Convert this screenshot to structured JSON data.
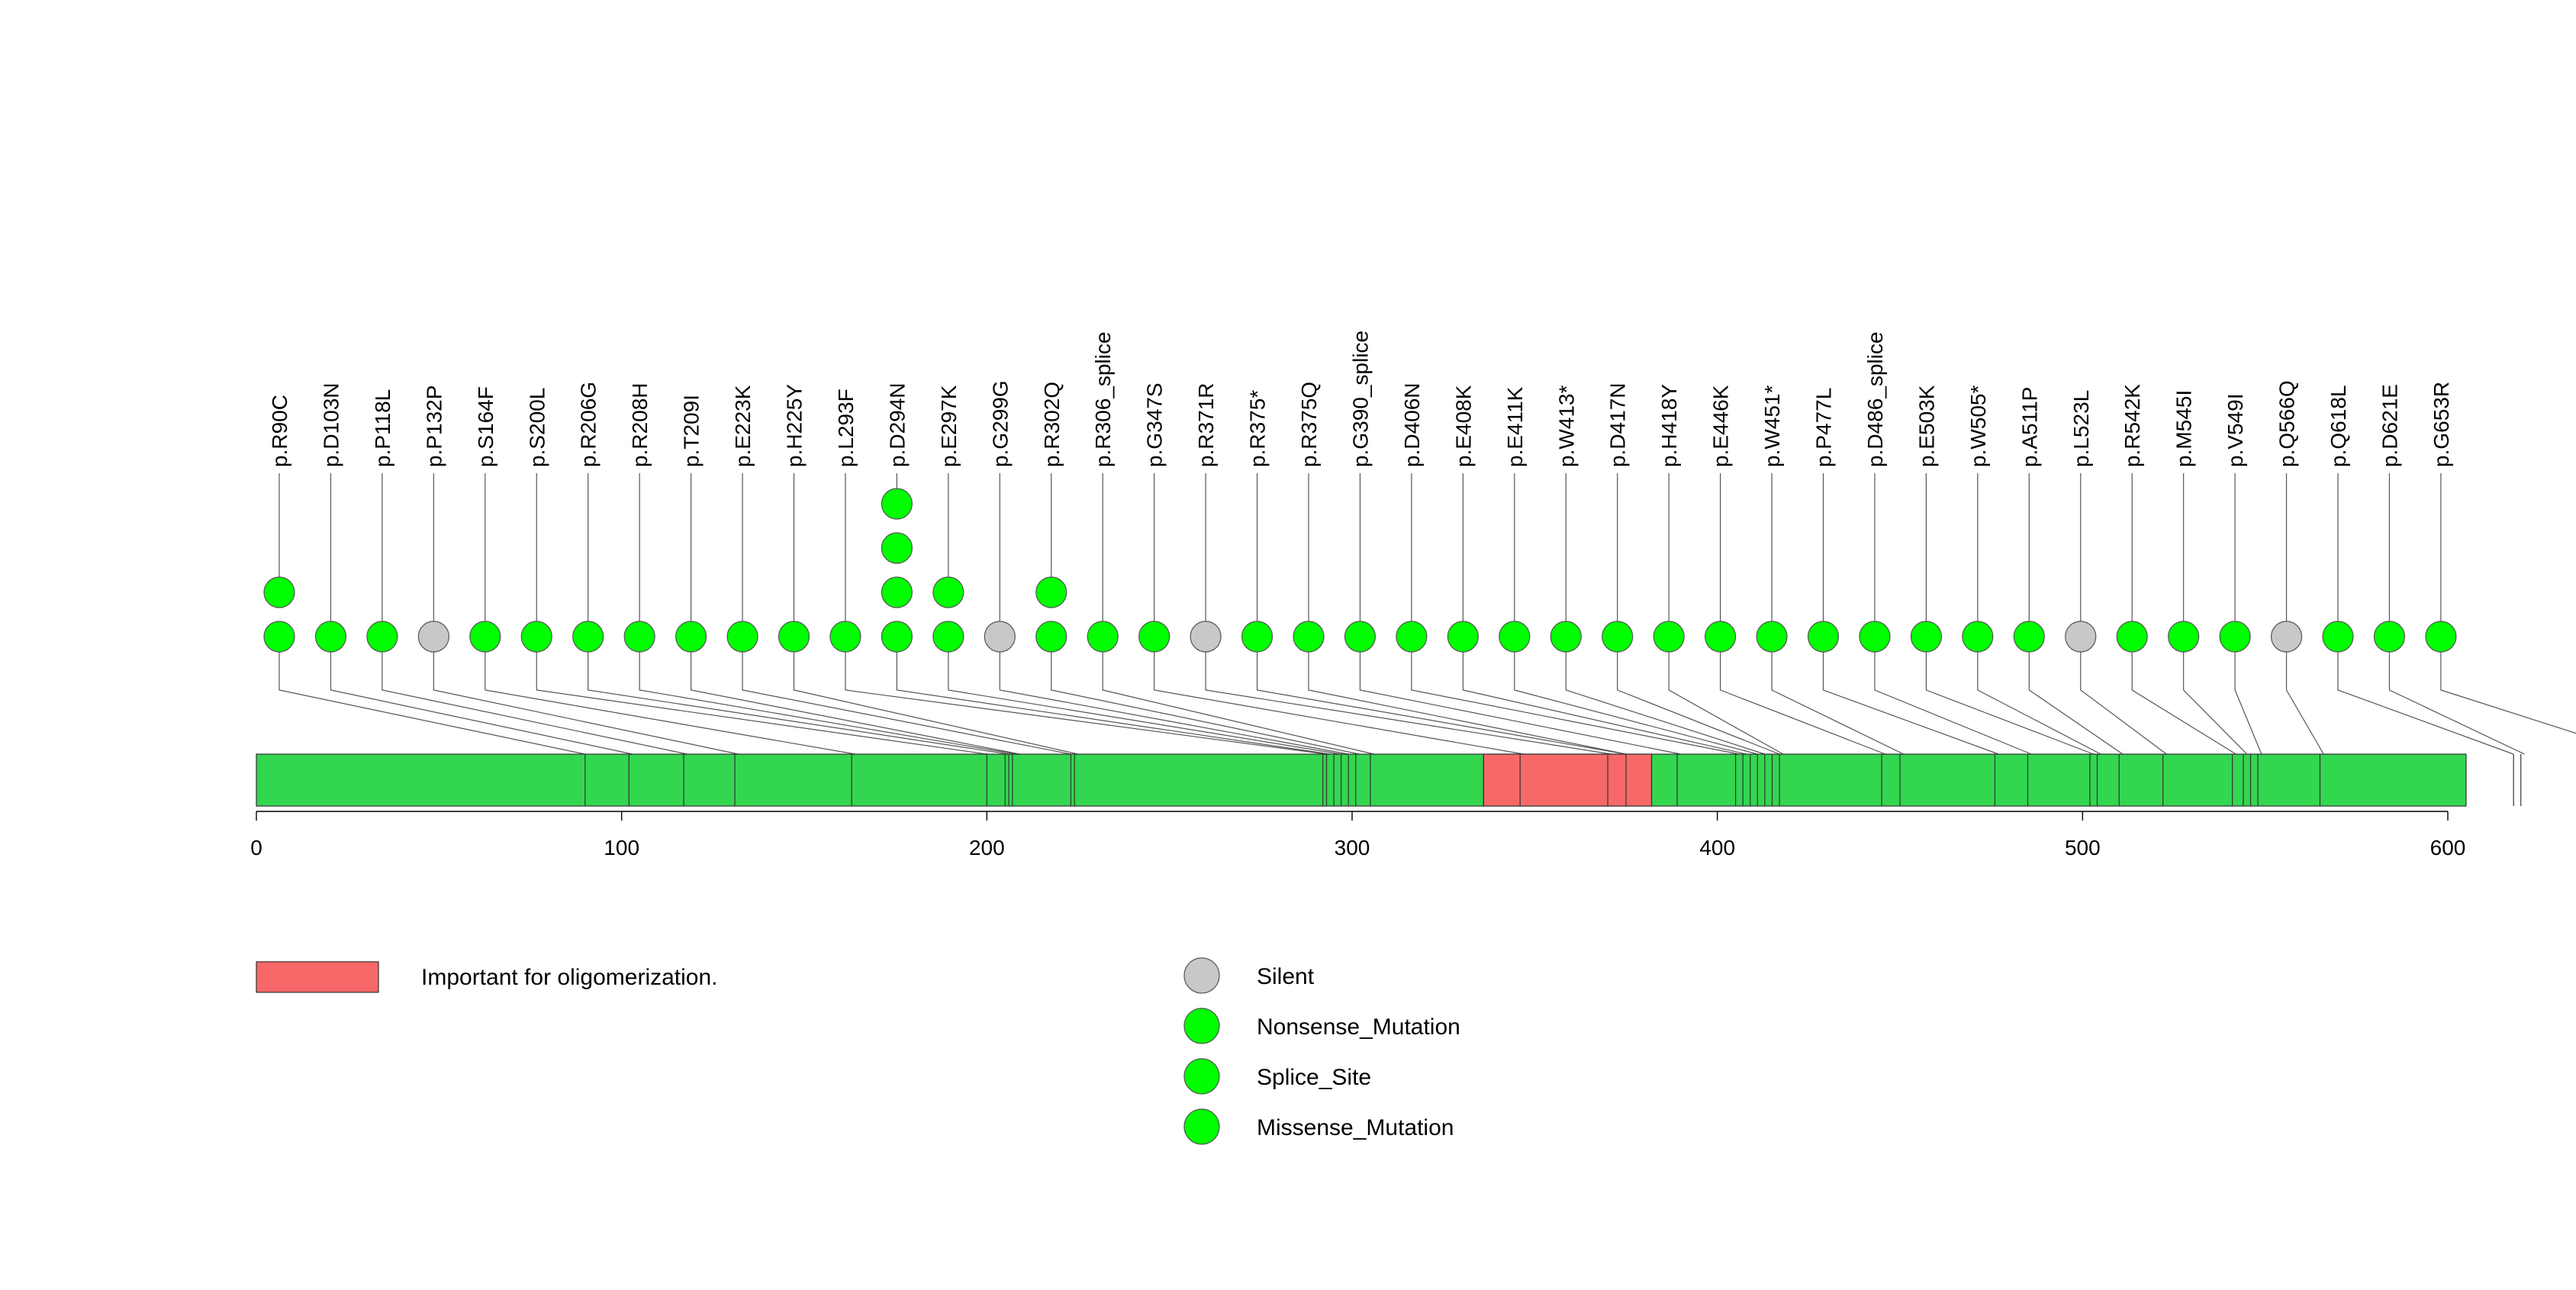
{
  "chart_data": {
    "type": "lollipop",
    "xlim": [
      0,
      620
    ],
    "protein_length": 605,
    "x_ticks": [
      0,
      100,
      200,
      300,
      400,
      500,
      600
    ],
    "x_tick_labels": [
      "0",
      "100",
      "200",
      "300",
      "400",
      "500",
      "600"
    ],
    "domains": [
      {
        "name": "Important for oligomerization.",
        "start": 336,
        "end": 382,
        "color": "#f76868"
      }
    ],
    "backbone_color": "#33d64f",
    "feature_lines": [
      90,
      102,
      117,
      131,
      163,
      200,
      205,
      206,
      207,
      223,
      224,
      292,
      293,
      295,
      297,
      299,
      301,
      305,
      336,
      346,
      370,
      375,
      382,
      389,
      405,
      407,
      409,
      411,
      413,
      415,
      417,
      445,
      450,
      476,
      485,
      502,
      504,
      510,
      522,
      541,
      544,
      546,
      548,
      565,
      618,
      620
    ],
    "mutations": [
      {
        "label": "p.R90C",
        "position": 90,
        "count": 2,
        "type": "Missense_Mutation"
      },
      {
        "label": "p.D103N",
        "position": 103,
        "count": 1,
        "type": "Missense_Mutation"
      },
      {
        "label": "p.P118L",
        "position": 118,
        "count": 1,
        "type": "Missense_Mutation"
      },
      {
        "label": "p.P132P",
        "position": 132,
        "count": 1,
        "type": "Silent"
      },
      {
        "label": "p.S164F",
        "position": 164,
        "count": 1,
        "type": "Missense_Mutation"
      },
      {
        "label": "p.S200L",
        "position": 200,
        "count": 1,
        "type": "Missense_Mutation"
      },
      {
        "label": "p.R206G",
        "position": 206,
        "count": 1,
        "type": "Missense_Mutation"
      },
      {
        "label": "p.R208H",
        "position": 208,
        "count": 1,
        "type": "Missense_Mutation"
      },
      {
        "label": "p.T209I",
        "position": 209,
        "count": 1,
        "type": "Missense_Mutation"
      },
      {
        "label": "p.E223K",
        "position": 223,
        "count": 1,
        "type": "Missense_Mutation"
      },
      {
        "label": "p.H225Y",
        "position": 225,
        "count": 1,
        "type": "Missense_Mutation"
      },
      {
        "label": "p.L293F",
        "position": 293,
        "count": 1,
        "type": "Missense_Mutation"
      },
      {
        "label": "p.D294N",
        "position": 294,
        "count": 4,
        "type": "Missense_Mutation"
      },
      {
        "label": "p.E297K",
        "position": 297,
        "count": 2,
        "type": "Missense_Mutation"
      },
      {
        "label": "p.G299G",
        "position": 299,
        "count": 1,
        "type": "Silent"
      },
      {
        "label": "p.R302Q",
        "position": 302,
        "count": 2,
        "type": "Missense_Mutation"
      },
      {
        "label": "p.R306_splice",
        "position": 306,
        "count": 1,
        "type": "Splice_Site"
      },
      {
        "label": "p.G347S",
        "position": 347,
        "count": 1,
        "type": "Missense_Mutation"
      },
      {
        "label": "p.R371R",
        "position": 371,
        "count": 1,
        "type": "Silent"
      },
      {
        "label": "p.R375*",
        "position": 375,
        "count": 1,
        "type": "Nonsense_Mutation"
      },
      {
        "label": "p.R375Q",
        "position": 375,
        "count": 1,
        "type": "Missense_Mutation"
      },
      {
        "label": "p.G390_splice",
        "position": 390,
        "count": 1,
        "type": "Splice_Site"
      },
      {
        "label": "p.D406N",
        "position": 406,
        "count": 1,
        "type": "Missense_Mutation"
      },
      {
        "label": "p.E408K",
        "position": 408,
        "count": 1,
        "type": "Missense_Mutation"
      },
      {
        "label": "p.E411K",
        "position": 411,
        "count": 1,
        "type": "Missense_Mutation"
      },
      {
        "label": "p.W413*",
        "position": 413,
        "count": 1,
        "type": "Nonsense_Mutation"
      },
      {
        "label": "p.D417N",
        "position": 417,
        "count": 1,
        "type": "Missense_Mutation"
      },
      {
        "label": "p.H418Y",
        "position": 418,
        "count": 1,
        "type": "Missense_Mutation"
      },
      {
        "label": "p.E446K",
        "position": 446,
        "count": 1,
        "type": "Missense_Mutation"
      },
      {
        "label": "p.W451*",
        "position": 451,
        "count": 1,
        "type": "Nonsense_Mutation"
      },
      {
        "label": "p.P477L",
        "position": 477,
        "count": 1,
        "type": "Missense_Mutation"
      },
      {
        "label": "p.D486_splice",
        "position": 486,
        "count": 1,
        "type": "Splice_Site"
      },
      {
        "label": "p.E503K",
        "position": 503,
        "count": 1,
        "type": "Missense_Mutation"
      },
      {
        "label": "p.W505*",
        "position": 505,
        "count": 1,
        "type": "Nonsense_Mutation"
      },
      {
        "label": "p.A511P",
        "position": 511,
        "count": 1,
        "type": "Missense_Mutation"
      },
      {
        "label": "p.L523L",
        "position": 523,
        "count": 1,
        "type": "Silent"
      },
      {
        "label": "p.R542K",
        "position": 542,
        "count": 1,
        "type": "Missense_Mutation"
      },
      {
        "label": "p.M545I",
        "position": 545,
        "count": 1,
        "type": "Missense_Mutation"
      },
      {
        "label": "p.V549I",
        "position": 549,
        "count": 1,
        "type": "Missense_Mutation"
      },
      {
        "label": "p.Q566Q",
        "position": 566,
        "count": 1,
        "type": "Silent"
      },
      {
        "label": "p.Q618L",
        "position": 618,
        "count": 1,
        "type": "Missense_Mutation"
      },
      {
        "label": "p.D621E",
        "position": 621,
        "count": 1,
        "type": "Missense_Mutation"
      },
      {
        "label": "p.G653R",
        "position": 653,
        "count": 1,
        "type": "Missense_Mutation"
      }
    ],
    "legend": {
      "domains": [
        {
          "label": "Important for oligomerization.",
          "color": "#f76868"
        }
      ],
      "mutation_types": [
        {
          "label": "Silent",
          "color": "#c8c8c8"
        },
        {
          "label": "Nonsense_Mutation",
          "color": "#00ff00"
        },
        {
          "label": "Splice_Site",
          "color": "#00ff00"
        },
        {
          "label": "Missense_Mutation",
          "color": "#00ff00"
        }
      ]
    }
  }
}
